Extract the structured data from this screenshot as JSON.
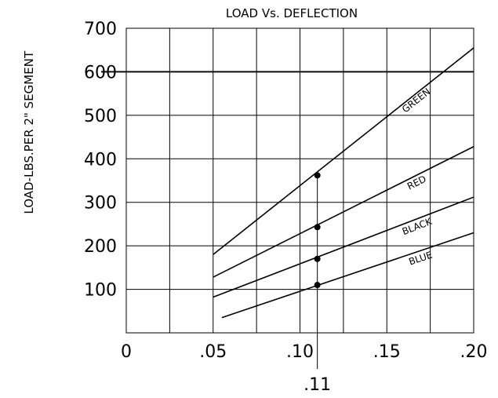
{
  "chart_data": {
    "type": "line",
    "title": "LOAD Vs. DEFLECTION",
    "ylabel": "LOAD-LBS.PER 2\" SEGMENT",
    "xlabel": "",
    "xlim": [
      0,
      0.2
    ],
    "ylim": [
      0,
      700
    ],
    "x_ticks": [
      {
        "value": 0,
        "label": "0"
      },
      {
        "value": 0.05,
        "label": ".05"
      },
      {
        "value": 0.1,
        "label": ".10"
      },
      {
        "value": 0.15,
        "label": ".15"
      },
      {
        "value": 0.2,
        "label": ".20"
      }
    ],
    "y_ticks": [
      {
        "value": 100,
        "label": "100"
      },
      {
        "value": 200,
        "label": "200"
      },
      {
        "value": 300,
        "label": "300"
      },
      {
        "value": 400,
        "label": "400"
      },
      {
        "value": 500,
        "label": "500"
      },
      {
        "value": 600,
        "label": "600"
      },
      {
        "value": 700,
        "label": "700"
      }
    ],
    "x_gridlines": [
      0.025,
      0.05,
      0.075,
      0.1,
      0.125,
      0.15,
      0.175
    ],
    "y_gridlines": [
      100,
      200,
      300,
      400,
      500,
      600
    ],
    "reference_line": {
      "y": 600
    },
    "marker": {
      "x": 0.11,
      "label": ".11"
    },
    "grid": true,
    "series": [
      {
        "name": "GREEN",
        "x": [
          0.05,
          0.2
        ],
        "y": [
          180,
          655
        ],
        "marker_y": 362
      },
      {
        "name": "RED",
        "x": [
          0.05,
          0.2
        ],
        "y": [
          128,
          428
        ],
        "marker_y": 243
      },
      {
        "name": "BLACK",
        "x": [
          0.05,
          0.2
        ],
        "y": [
          82,
          312
        ],
        "marker_y": 170
      },
      {
        "name": "BLUE",
        "x": [
          0.055,
          0.2
        ],
        "y": [
          35,
          230
        ],
        "marker_y": 110
      }
    ]
  }
}
